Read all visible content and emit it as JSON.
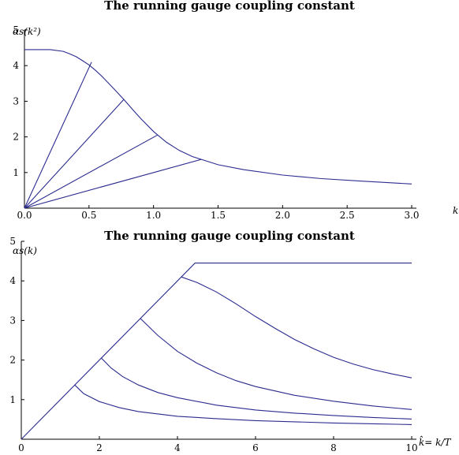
{
  "chart_data": [
    {
      "type": "line",
      "title": "The running gauge coupling constant",
      "ylabel": "αs(k²)",
      "xlabel": "k",
      "xlim": [
        0,
        3.0
      ],
      "ylim": [
        0,
        5
      ],
      "x_ticks": [
        "0.0",
        "0.5",
        "1.0",
        "1.5",
        "2.0",
        "2.5",
        "3.0"
      ],
      "y_ticks": [
        "1",
        "2",
        "3",
        "4",
        "5"
      ],
      "main_curve": {
        "x": [
          0.0,
          0.2,
          0.3,
          0.35,
          0.4,
          0.45,
          0.5,
          0.55,
          0.6,
          0.7,
          0.77,
          0.85,
          0.9,
          1.0,
          1.1,
          1.2,
          1.3,
          1.37,
          1.5,
          1.7,
          2.0,
          2.3,
          2.6,
          3.0
        ],
        "y": [
          4.45,
          4.45,
          4.4,
          4.33,
          4.25,
          4.14,
          4.02,
          3.87,
          3.7,
          3.32,
          3.05,
          2.72,
          2.52,
          2.15,
          1.85,
          1.62,
          1.45,
          1.37,
          1.22,
          1.08,
          0.93,
          0.83,
          0.76,
          0.68
        ]
      },
      "rays": [
        {
          "x": [
            0.0,
            0.52
          ],
          "y": [
            0.0,
            4.1
          ]
        },
        {
          "x": [
            0.0,
            0.77
          ],
          "y": [
            0.0,
            3.05
          ]
        },
        {
          "x": [
            0.0,
            1.03
          ],
          "y": [
            0.0,
            2.05
          ]
        },
        {
          "x": [
            0.0,
            1.37
          ],
          "y": [
            0.0,
            1.37
          ]
        }
      ]
    },
    {
      "type": "line",
      "title": "The running gauge coupling constant",
      "ylabel": "αs(k)",
      "xlabel": "k̂= k/T",
      "xlim": [
        0,
        10
      ],
      "ylim": [
        0,
        5
      ],
      "x_ticks": [
        "0",
        "2",
        "4",
        "6",
        "8",
        "10"
      ],
      "y_ticks": [
        "1",
        "2",
        "3",
        "4",
        "5"
      ],
      "series": [
        {
          "x": [
            0.0,
            4.45,
            10.0
          ],
          "y": [
            0.0,
            4.45,
            4.45
          ]
        },
        {
          "x": [
            4.1,
            4.5,
            5.0,
            5.5,
            6.0,
            6.5,
            7.0,
            7.5,
            8.0,
            8.5,
            9.0,
            9.5,
            10.0
          ],
          "y": [
            4.1,
            3.96,
            3.72,
            3.42,
            3.1,
            2.8,
            2.52,
            2.28,
            2.07,
            1.9,
            1.76,
            1.65,
            1.55
          ]
        },
        {
          "x": [
            3.05,
            3.5,
            4.0,
            4.5,
            5.0,
            5.5,
            6.0,
            7.0,
            8.0,
            9.0,
            10.0
          ],
          "y": [
            3.05,
            2.62,
            2.22,
            1.92,
            1.68,
            1.48,
            1.33,
            1.11,
            0.96,
            0.84,
            0.75
          ]
        },
        {
          "x": [
            2.05,
            2.3,
            2.6,
            3.0,
            3.5,
            4.0,
            5.0,
            6.0,
            7.0,
            8.0,
            9.0,
            10.0
          ],
          "y": [
            2.05,
            1.8,
            1.58,
            1.37,
            1.18,
            1.05,
            0.86,
            0.74,
            0.66,
            0.6,
            0.55,
            0.51
          ]
        },
        {
          "x": [
            1.37,
            1.6,
            2.0,
            2.5,
            3.0,
            4.0,
            5.0,
            6.0,
            7.0,
            8.0,
            9.0,
            10.0
          ],
          "y": [
            1.37,
            1.15,
            0.95,
            0.8,
            0.7,
            0.58,
            0.52,
            0.47,
            0.44,
            0.41,
            0.39,
            0.37
          ]
        }
      ]
    }
  ]
}
